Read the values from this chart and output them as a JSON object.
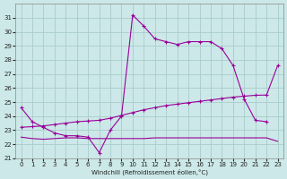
{
  "xlabel": "Windchill (Refroidissement éolien,°C)",
  "bg_color": "#cce8e8",
  "grid_color": "#aacccc",
  "line_color": "#990099",
  "xlim": [
    -0.5,
    23.5
  ],
  "ylim": [
    21,
    32
  ],
  "yticks": [
    21,
    22,
    23,
    24,
    25,
    26,
    27,
    28,
    29,
    30,
    31
  ],
  "xticks": [
    0,
    1,
    2,
    3,
    4,
    5,
    6,
    7,
    8,
    9,
    10,
    11,
    12,
    13,
    14,
    15,
    16,
    17,
    18,
    19,
    20,
    21,
    22,
    23
  ],
  "line1_x": [
    0,
    1,
    2,
    3,
    4,
    5,
    6,
    7,
    8,
    9,
    10,
    11,
    12,
    13,
    14,
    15,
    16,
    17,
    18,
    19,
    20,
    21,
    22
  ],
  "line1_y": [
    24.6,
    23.6,
    23.2,
    22.8,
    22.6,
    22.6,
    22.5,
    21.4,
    23.0,
    24.0,
    31.2,
    30.4,
    29.5,
    29.3,
    29.1,
    29.3,
    29.3,
    29.3,
    28.8,
    27.6,
    25.2,
    23.7,
    23.6
  ],
  "line2_x": [
    0,
    1,
    2,
    3,
    4,
    5,
    6,
    7,
    8,
    9,
    10,
    11,
    12,
    13,
    14,
    15,
    16,
    17,
    18,
    19,
    20,
    21,
    22,
    23
  ],
  "line2_y": [
    23.2,
    23.25,
    23.3,
    23.4,
    23.5,
    23.6,
    23.65,
    23.7,
    23.85,
    24.05,
    24.25,
    24.45,
    24.6,
    24.75,
    24.85,
    24.95,
    25.05,
    25.15,
    25.25,
    25.35,
    25.42,
    25.48,
    25.5,
    27.6
  ],
  "line3_x": [
    0,
    1,
    2,
    3,
    4,
    5,
    6,
    7,
    8,
    9,
    10,
    11,
    12,
    13,
    14,
    15,
    16,
    17,
    18,
    19,
    20,
    21,
    22,
    23
  ],
  "line3_y": [
    22.5,
    22.4,
    22.35,
    22.4,
    22.45,
    22.45,
    22.4,
    22.4,
    22.4,
    22.4,
    22.4,
    22.4,
    22.45,
    22.45,
    22.45,
    22.45,
    22.45,
    22.45,
    22.45,
    22.45,
    22.45,
    22.45,
    22.45,
    22.2
  ]
}
